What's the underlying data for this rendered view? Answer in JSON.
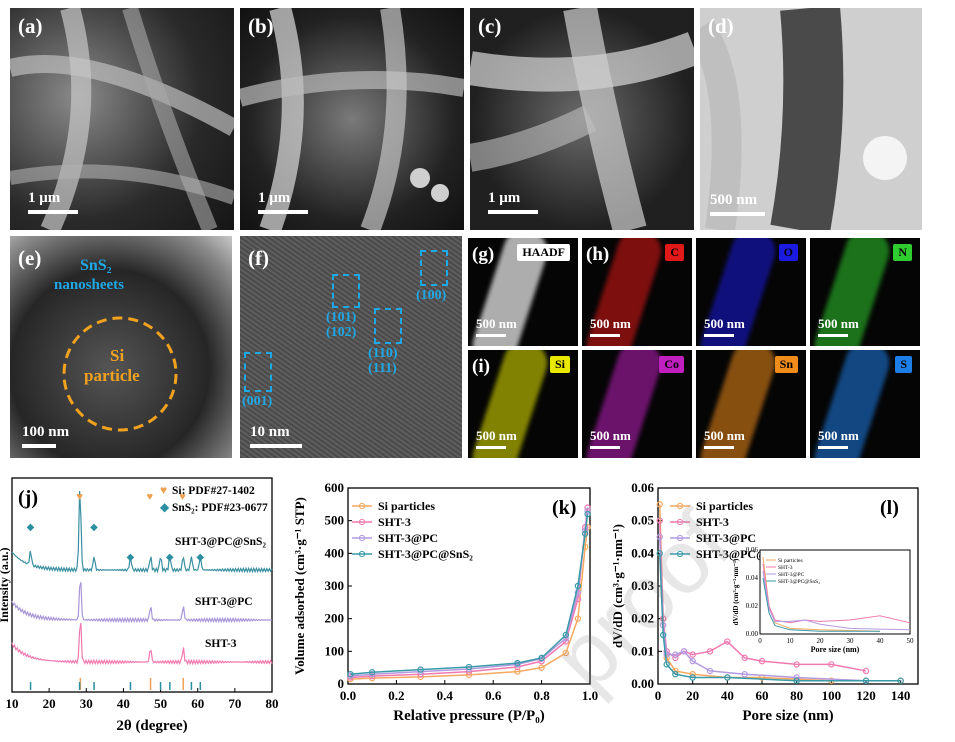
{
  "panels_top": [
    {
      "label": "(a)",
      "scale": "1 μm"
    },
    {
      "label": "(b)",
      "scale": "1 μm"
    },
    {
      "label": "(c)",
      "scale": "1 μm"
    },
    {
      "label": "(d)",
      "scale": "500 nm"
    }
  ],
  "panel_e": {
    "label": "(e)",
    "scale": "100 nm",
    "sns2": "SnS₂",
    "nanosheets": "nanosheets",
    "si": "Si",
    "particle": "particle"
  },
  "panel_f": {
    "label": "(f)",
    "scale": "10 nm",
    "p101": "(101)",
    "p102": "(102)",
    "p110": "(110)",
    "p111": "(111)",
    "p100": "(100)",
    "p001": "(001)"
  },
  "eds": [
    {
      "label": "(g)",
      "elem": "HAADF",
      "scale": "500 nm",
      "color": "#9a9a9a"
    },
    {
      "label": "(h)",
      "elem": "C",
      "scale": "500 nm",
      "color": "#e01818"
    },
    {
      "label": "",
      "elem": "O",
      "scale": "500 nm",
      "color": "#1a1ae0"
    },
    {
      "label": "",
      "elem": "N",
      "scale": "500 nm",
      "color": "#2ecc2e"
    },
    {
      "label": "(i)",
      "elem": "Si",
      "scale": "500 nm",
      "color": "#e8e800"
    },
    {
      "label": "",
      "elem": "Co",
      "scale": "500 nm",
      "color": "#c020c0"
    },
    {
      "label": "",
      "elem": "Sn",
      "scale": "500 nm",
      "color": "#f08c1a"
    },
    {
      "label": "",
      "elem": "S",
      "scale": "500 nm",
      "color": "#1e7ee8"
    }
  ],
  "chart_data": [
    {
      "type": "line",
      "panel": "(j)",
      "xlabel": "2θ (degree)",
      "ylabel": "Intensity (a.u.)",
      "xlim": [
        10,
        80
      ],
      "xticks": [
        10,
        20,
        30,
        40,
        50,
        60,
        70,
        80
      ],
      "legend": [
        {
          "marker": "♥",
          "text": "Si: PDF#27-1402",
          "color": "#f0a050"
        },
        {
          "marker": "◆",
          "text": "SnS₂: PDF#23-0677",
          "color": "#2a8fa0"
        }
      ],
      "series": [
        {
          "name": "SHT-3@PC@SnS₂",
          "color": "#3a8fa0",
          "offset": 3
        },
        {
          "name": "SHT-3@PC",
          "color": "#a896d8",
          "offset": 2
        },
        {
          "name": "SHT-3",
          "color": "#f07ab0",
          "offset": 1
        }
      ],
      "si_peaks": [
        28.4,
        47.3,
        56.1
      ],
      "sns2_peaks": [
        15.0,
        28.2,
        32.1,
        41.9,
        50.0,
        52.5,
        58.3,
        60.7
      ]
    },
    {
      "type": "line",
      "panel": "(k)",
      "xlabel": "Relative pressure (P/P₀)",
      "ylabel": "Volume adsorbed (cm³·g⁻¹ STP)",
      "xlim": [
        0,
        1.0
      ],
      "ylim": [
        0,
        600
      ],
      "xticks": [
        "0.0",
        "0.2",
        "0.4",
        "0.6",
        "0.8",
        "1.0"
      ],
      "yticks": [
        0,
        100,
        200,
        300,
        400,
        500,
        600
      ],
      "series": [
        {
          "name": "Si particles",
          "color": "#f5a860",
          "x": [
            0.01,
            0.1,
            0.3,
            0.5,
            0.7,
            0.8,
            0.9,
            0.95,
            0.98,
            0.99
          ],
          "y": [
            15,
            18,
            22,
            28,
            38,
            50,
            95,
            200,
            420,
            480
          ]
        },
        {
          "name": "SHT-3",
          "color": "#f07ab0",
          "x": [
            0.01,
            0.1,
            0.3,
            0.5,
            0.7,
            0.8,
            0.9,
            0.95,
            0.98,
            0.99
          ],
          "y": [
            20,
            24,
            30,
            38,
            52,
            70,
            130,
            260,
            480,
            540
          ]
        },
        {
          "name": "SHT-3@PC",
          "color": "#b49ae0",
          "x": [
            0.01,
            0.1,
            0.3,
            0.5,
            0.7,
            0.8,
            0.9,
            0.95,
            0.98,
            0.99
          ],
          "y": [
            25,
            30,
            38,
            46,
            60,
            78,
            140,
            280,
            470,
            530
          ]
        },
        {
          "name": "SHT-3@PC@SnS₂",
          "color": "#3a9aa8",
          "x": [
            0.01,
            0.1,
            0.3,
            0.5,
            0.7,
            0.8,
            0.9,
            0.95,
            0.98,
            0.99
          ],
          "y": [
            30,
            36,
            44,
            52,
            64,
            80,
            150,
            300,
            460,
            520
          ]
        }
      ]
    },
    {
      "type": "line",
      "panel": "(l)",
      "xlabel": "Pore size (nm)",
      "ylabel": "dV/dD (cm³·g⁻¹·nm⁻¹)",
      "xlim": [
        0,
        150
      ],
      "ylim": [
        0,
        0.06
      ],
      "xticks": [
        0,
        20,
        40,
        60,
        80,
        100,
        120,
        140
      ],
      "yticks": [
        "0.00",
        "0.01",
        "0.02",
        "0.03",
        "0.04",
        "0.05",
        "0.06"
      ],
      "series": [
        {
          "name": "Si particles",
          "color": "#f5a860",
          "x": [
            1,
            3,
            5,
            10,
            20,
            40,
            60,
            100,
            140
          ],
          "y": [
            0.055,
            0.02,
            0.008,
            0.004,
            0.003,
            0.002,
            0.002,
            0.001,
            0.001
          ]
        },
        {
          "name": "SHT-3",
          "color": "#f07ab0",
          "x": [
            1,
            3,
            5,
            10,
            15,
            20,
            30,
            40,
            50,
            60,
            80,
            100,
            120
          ],
          "y": [
            0.05,
            0.02,
            0.01,
            0.008,
            0.01,
            0.009,
            0.01,
            0.013,
            0.008,
            0.007,
            0.006,
            0.006,
            0.004
          ]
        },
        {
          "name": "SHT-3@PC",
          "color": "#b49ae0",
          "x": [
            1,
            3,
            5,
            10,
            15,
            20,
            30,
            50,
            80,
            120
          ],
          "y": [
            0.045,
            0.018,
            0.009,
            0.009,
            0.01,
            0.007,
            0.004,
            0.003,
            0.002,
            0.001
          ]
        },
        {
          "name": "SHT-3@PC@SnS₂",
          "color": "#3a9aa8",
          "x": [
            1,
            3,
            5,
            10,
            20,
            40,
            80,
            120,
            140
          ],
          "y": [
            0.04,
            0.015,
            0.006,
            0.003,
            0.002,
            0.002,
            0.001,
            0.001,
            0.001
          ]
        }
      ],
      "inset": {
        "xlabel": "Pore size (nm)",
        "ylabel": "dV/dD (cm³·g⁻¹·nm⁻¹)",
        "xticks": [
          0,
          10,
          20,
          30,
          40,
          50
        ],
        "yticks": [
          "0.00",
          "0.02",
          "0.04",
          "0.06"
        ],
        "legend": [
          "Si particles",
          "SHT-3",
          "SHT-3@PC",
          "SHT-3@PC@SnS₂"
        ]
      }
    }
  ],
  "watermark": "proof"
}
